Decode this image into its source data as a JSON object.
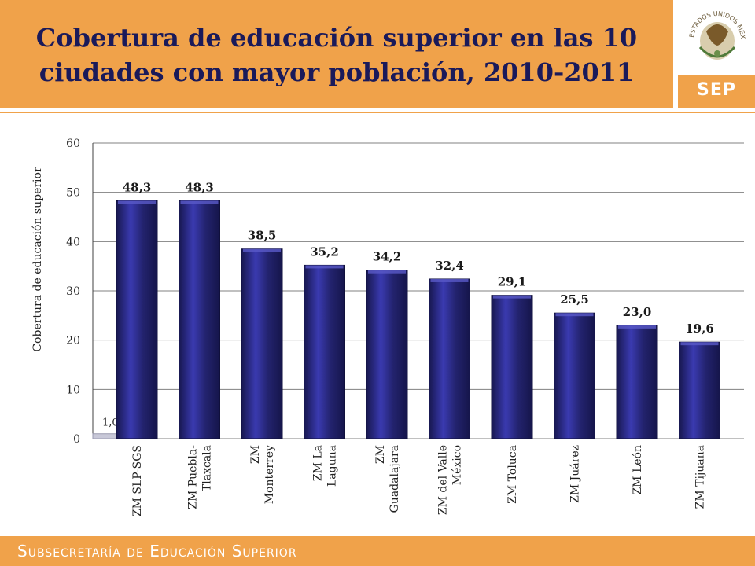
{
  "header": {
    "title": "Cobertura de educación superior en las 10\nciudades con mayor población, 2010-2011"
  },
  "logo": {
    "seal_text": "ESTADOS UNIDOS MEXICANOS",
    "label": "SEP"
  },
  "footer": {
    "text": "Subsecretaría de Educación Superior"
  },
  "chart_data": {
    "type": "bar",
    "ylabel": "Cobertura de educación superior",
    "ylim": [
      0,
      60
    ],
    "yticks": [
      0,
      10,
      20,
      30,
      40,
      50,
      60
    ],
    "grid": true,
    "categories": [
      "ZM SLP-SGS",
      "ZM Puebla-\nTlaxcala",
      "ZM\nMonterrey",
      "ZM La\nLaguna",
      "ZM\nGuadalajara",
      "ZM del Valle\nMéxico",
      "ZM Toluca",
      "ZM Juárez",
      "ZM León",
      "ZM Tijuana"
    ],
    "values": [
      48.3,
      48.3,
      38.5,
      35.2,
      34.2,
      32.4,
      29.1,
      25.5,
      23.0,
      19.6
    ],
    "value_labels": [
      "48,3",
      "48,3",
      "38,5",
      "35,2",
      "34,2",
      "32,4",
      "29,1",
      "25,5",
      "23,0",
      "19,6"
    ],
    "extra_bar": {
      "value": 1.0,
      "label": "1,0"
    },
    "colors": {
      "bar": "#23236e",
      "bar_highlight": "#3a3ab0",
      "grid": "#808080",
      "axis": "#404040"
    }
  }
}
